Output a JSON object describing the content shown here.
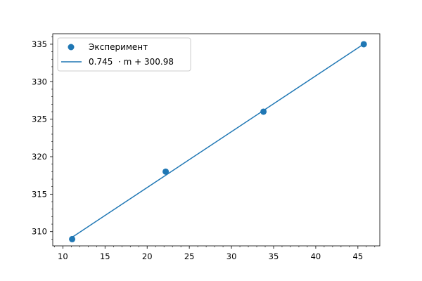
{
  "chart_data": {
    "type": "scatter",
    "title": "",
    "xlabel": "",
    "ylabel": "",
    "xlim": [
      8.8,
      47.6
    ],
    "ylim": [
      308.1,
      336.4
    ],
    "x_ticks": [
      10,
      15,
      20,
      25,
      30,
      35,
      40,
      45
    ],
    "y_ticks": [
      310,
      315,
      320,
      325,
      330,
      335
    ],
    "x_minor_step": 1,
    "y_minor_step": 1,
    "grid": false,
    "legend_position": "top-left",
    "series": [
      {
        "name": "Эксперимент",
        "kind": "scatter",
        "color": "#1f77b4",
        "points": [
          [
            11.1,
            309
          ],
          [
            22.2,
            318
          ],
          [
            33.8,
            326
          ],
          [
            45.7,
            335
          ]
        ]
      },
      {
        "name": "0.745  · m + 300.98",
        "kind": "line",
        "color": "#1f77b4",
        "slope": 0.745,
        "intercept": 300.98,
        "x_range": [
          11.1,
          45.7
        ]
      }
    ]
  }
}
